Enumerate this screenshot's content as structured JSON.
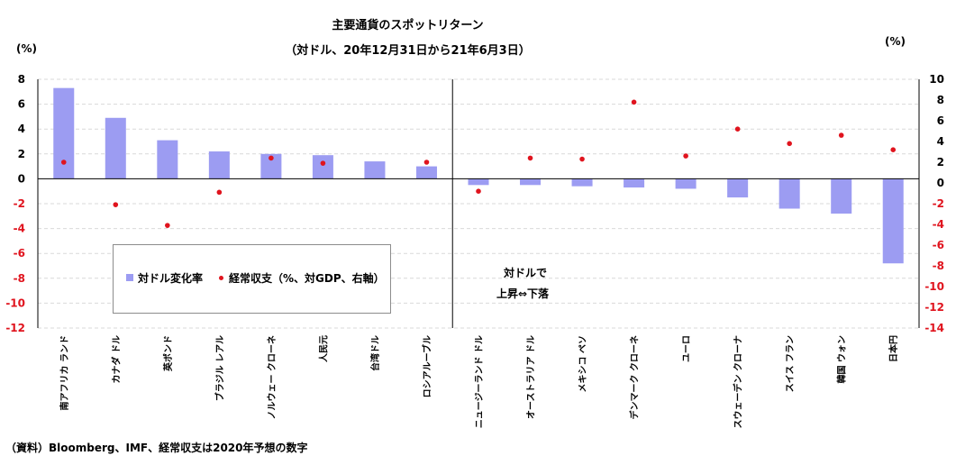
{
  "title": "主要通貨のスポットリターン",
  "subtitle": "（対ドル、20年12月31日から21年6月3日）",
  "left_unit": "(%)",
  "right_unit": "(%)",
  "source": "（資料）Bloomberg、IMF、経常収支は2020年予想の数字",
  "legend": {
    "bar_label": "対ドル変化率",
    "dot_label": "経常収支（%、対GDP、右軸）"
  },
  "annotation": {
    "line1": "対ドルで",
    "line2": "上昇⇔下落"
  },
  "colors": {
    "bar": "#9c9cf2",
    "dot": "#e0141e",
    "grid": "#d9d9d9",
    "axis": "#000000",
    "negative_tick": "#e0141e"
  },
  "chart_data": {
    "type": "bar",
    "title": "主要通貨のスポットリターン",
    "subtitle": "（対ドル、20年12月31日から21年6月3日）",
    "categories": [
      "南アフリカ ランド",
      "カナダ ドル",
      "英ポンド",
      "ブラジル レアル",
      "ノルウェー クローネ",
      "人民元",
      "台湾ドル",
      "ロシアルーブル",
      "ニュージーランド ドル",
      "オーストラリア ドル",
      "メキシコ ペソ",
      "デンマーク クローネ",
      "ユーロ",
      "スウェーデン クローナ",
      "スイス フラン",
      "韓国 ウォン",
      "日本円"
    ],
    "series": [
      {
        "name": "対ドル変化率",
        "type": "bar",
        "axis": "left",
        "values": [
          7.3,
          4.9,
          3.1,
          2.2,
          2.0,
          1.9,
          1.4,
          1.0,
          -0.5,
          -0.5,
          -0.6,
          -0.7,
          -0.8,
          -1.5,
          -2.4,
          -2.8,
          -6.8
        ]
      },
      {
        "name": "経常収支（%、対GDP、右軸）",
        "type": "scatter",
        "axis": "right",
        "values": [
          2.0,
          -2.1,
          -4.1,
          -0.9,
          2.4,
          1.9,
          null,
          2.0,
          -0.8,
          2.4,
          2.3,
          7.8,
          2.6,
          5.2,
          3.8,
          4.6,
          3.2
        ]
      }
    ],
    "left_axis": {
      "range": [
        -12,
        8
      ],
      "ticks": [
        8,
        6,
        4,
        2,
        0,
        -2,
        -4,
        -6,
        -8,
        -10,
        -12
      ]
    },
    "right_axis": {
      "range": [
        -14,
        10
      ],
      "ticks": [
        10,
        8,
        6,
        4,
        2,
        0,
        -2,
        -4,
        -6,
        -8,
        -10,
        -12,
        -14
      ]
    },
    "divider_after_index": 7,
    "grid": true,
    "legend_position": "bottom-left"
  }
}
